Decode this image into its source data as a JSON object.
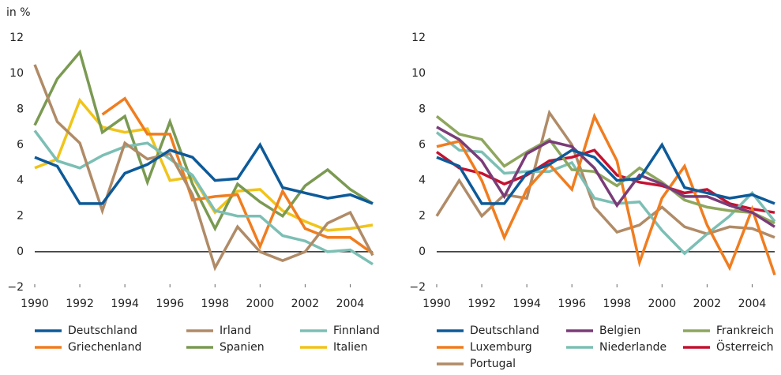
{
  "chart_data": [
    {
      "type": "line",
      "ylabel": "in %",
      "x": [
        1990,
        1991,
        1992,
        1993,
        1994,
        1995,
        1996,
        1997,
        1998,
        1999,
        2000,
        2001,
        2002,
        2003,
        2004,
        2005
      ],
      "xlim": [
        1990,
        2005
      ],
      "xticks": [
        1990,
        1992,
        1994,
        1996,
        1998,
        2000,
        2002,
        2004
      ],
      "ylim": [
        -2,
        12
      ],
      "yticks": [
        {
          "value": -2,
          "label": "−2"
        },
        0,
        2,
        4,
        6,
        8,
        10,
        12
      ],
      "series": [
        {
          "name": "Deutschland",
          "color": "#0d5a99",
          "values": [
            5.3,
            4.8,
            2.7,
            2.7,
            4.4,
            4.9,
            5.7,
            5.3,
            4.0,
            4.1,
            6.0,
            3.6,
            3.3,
            3.0,
            3.2,
            2.7
          ]
        },
        {
          "name": "Irland",
          "color": "#b08b67",
          "values": [
            10.5,
            7.3,
            6.1,
            2.3,
            6.1,
            5.2,
            5.5,
            3.2,
            -0.9,
            1.4,
            0.0,
            -0.5,
            0.0,
            1.6,
            2.2,
            -0.2
          ]
        },
        {
          "name": "Finnland",
          "color": "#7cbfb4",
          "values": [
            6.8,
            5.1,
            4.7,
            5.4,
            5.9,
            6.1,
            5.2,
            4.3,
            2.3,
            2.0,
            2.0,
            0.9,
            0.6,
            0.0,
            0.1,
            -0.7
          ]
        },
        {
          "name": "Griechenland",
          "color": "#f07d1f",
          "values": [
            null,
            null,
            null,
            7.7,
            8.6,
            6.6,
            6.6,
            2.9,
            3.1,
            3.2,
            0.3,
            3.4,
            1.3,
            0.8,
            0.8,
            -0.1
          ]
        },
        {
          "name": "Spanien",
          "color": "#7a9a52",
          "values": [
            7.1,
            9.7,
            11.2,
            6.7,
            7.6,
            3.9,
            7.3,
            3.8,
            1.3,
            3.8,
            2.8,
            2.0,
            3.7,
            4.6,
            3.5,
            2.7
          ]
        },
        {
          "name": "Italien",
          "color": "#f0c419",
          "values": [
            4.7,
            5.2,
            8.5,
            7.0,
            6.7,
            6.9,
            4.0,
            4.2,
            2.2,
            3.4,
            3.5,
            2.3,
            1.7,
            1.2,
            1.3,
            1.5
          ]
        }
      ]
    },
    {
      "type": "line",
      "x": [
        1990,
        1991,
        1992,
        1993,
        1994,
        1995,
        1996,
        1997,
        1998,
        1999,
        2000,
        2001,
        2002,
        2003,
        2004,
        2005
      ],
      "xlim": [
        1990,
        2005
      ],
      "xticks": [
        1990,
        1992,
        1994,
        1996,
        1998,
        2000,
        2002,
        2004
      ],
      "ylim": [
        -2,
        12
      ],
      "yticks": [
        {
          "value": -2,
          "label": "−2"
        },
        0,
        2,
        4,
        6,
        8,
        10,
        12
      ],
      "series": [
        {
          "name": "Deutschland",
          "color": "#0d5a99",
          "values": [
            5.3,
            4.8,
            2.7,
            2.7,
            4.4,
            4.9,
            5.7,
            5.3,
            4.0,
            4.1,
            6.0,
            3.6,
            3.3,
            3.0,
            3.2,
            2.7
          ]
        },
        {
          "name": "Belgien",
          "color": "#7a3c78",
          "values": [
            7.0,
            6.3,
            5.1,
            3.1,
            5.5,
            6.2,
            5.9,
            4.7,
            2.6,
            4.3,
            3.8,
            3.1,
            3.1,
            2.6,
            2.2,
            1.4
          ]
        },
        {
          "name": "Frankreich",
          "color": "#8ea65e",
          "values": [
            7.6,
            6.6,
            6.3,
            4.8,
            5.6,
            6.3,
            4.6,
            4.5,
            3.7,
            4.7,
            3.9,
            2.9,
            2.5,
            2.3,
            2.2,
            1.6
          ]
        },
        {
          "name": "Luxemburg",
          "color": "#f07d1f",
          "values": [
            5.9,
            6.2,
            4.0,
            0.8,
            3.5,
            4.9,
            3.5,
            7.6,
            5.1,
            -0.6,
            3.0,
            4.8,
            1.5,
            -0.9,
            2.4,
            -1.3
          ]
        },
        {
          "name": "Niederlande",
          "color": "#7cbfb4",
          "values": [
            6.7,
            5.7,
            5.6,
            4.4,
            4.5,
            4.5,
            5.0,
            3.0,
            2.7,
            2.8,
            1.2,
            -0.1,
            1.0,
            2.0,
            3.3,
            1.7
          ]
        },
        {
          "name": "Österreich",
          "color": "#c41230",
          "values": [
            5.6,
            4.7,
            4.4,
            3.8,
            4.3,
            5.1,
            5.3,
            5.7,
            4.3,
            3.9,
            3.7,
            3.3,
            3.5,
            2.7,
            2.4,
            2.2
          ]
        },
        {
          "name": "Portugal",
          "color": "#b08b67",
          "values": [
            2.0,
            4.0,
            2.0,
            3.2,
            3.0,
            7.8,
            6.0,
            2.5,
            1.1,
            1.5,
            2.5,
            1.4,
            1.0,
            1.4,
            1.3,
            0.8
          ]
        }
      ]
    }
  ]
}
